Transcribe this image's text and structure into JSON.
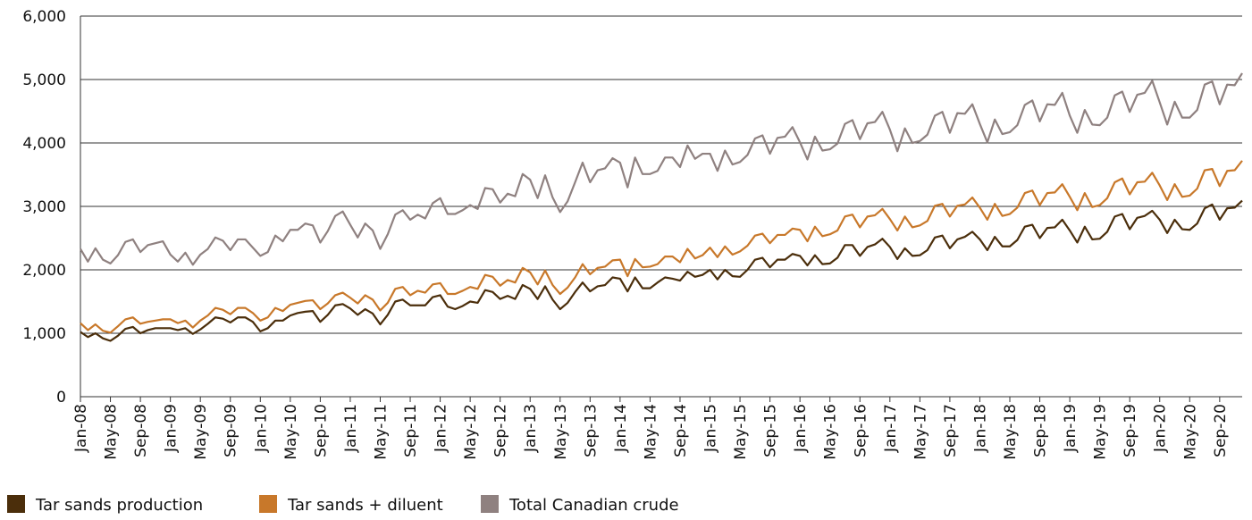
{
  "chart_data": {
    "type": "line",
    "categories": [
      "Jan-08",
      null,
      null,
      null,
      "May-08",
      null,
      null,
      null,
      "Sep-08",
      null,
      null,
      null,
      "Jan-09",
      null,
      null,
      null,
      "May-09",
      null,
      null,
      null,
      "Sep-09",
      null,
      null,
      null,
      "Jan-10",
      null,
      null,
      null,
      "May-10",
      null,
      null,
      null,
      "Sep-10",
      null,
      null,
      null,
      "Jan-11",
      null,
      null,
      null,
      "May-11",
      null,
      null,
      null,
      "Sep-11",
      null,
      null,
      null,
      "Jan-12",
      null,
      null,
      null,
      "May-12",
      null,
      null,
      null,
      "Sep-12",
      null,
      null,
      null,
      "Jan-13",
      null,
      null,
      null,
      "May-13",
      null,
      null,
      null,
      "Sep-13",
      null,
      null,
      null,
      "Jan-14",
      null,
      null,
      null,
      "May-14",
      null,
      null,
      null,
      "Sep-14",
      null,
      null,
      null,
      "Jan-15",
      null,
      null,
      null,
      "May-15",
      null,
      null,
      null,
      "Sep-15",
      null,
      null,
      null,
      "Jan-16",
      null,
      null,
      null,
      "May-16",
      null,
      null,
      null,
      "Sep-16",
      null,
      null,
      null,
      "Jan-17",
      null,
      null,
      null,
      "May-17",
      null,
      null,
      null,
      "Sep-17",
      null,
      null,
      null,
      "Jan-18",
      null,
      null,
      null,
      "May-18",
      null,
      null,
      null,
      "Sep-18",
      null,
      null,
      null,
      "Jan-19",
      null,
      null,
      null,
      "May-19",
      null,
      null,
      null,
      "Sep-19",
      null,
      null,
      null,
      "Jan-20",
      null,
      null,
      null,
      "May-20",
      null,
      null,
      null,
      "Sep-20",
      null,
      null,
      null
    ],
    "series": [
      {
        "name": "Tar sands production",
        "color": "#4b2e0b",
        "values": [
          1020,
          940,
          1000,
          920,
          880,
          960,
          1070,
          1100,
          1000,
          1050,
          1080,
          1080,
          1080,
          1050,
          1080,
          990,
          1060,
          1150,
          1250,
          1230,
          1170,
          1250,
          1250,
          1180,
          1030,
          1080,
          1200,
          1200,
          1280,
          1320,
          1340,
          1350,
          1180,
          1290,
          1440,
          1460,
          1390,
          1290,
          1380,
          1310,
          1140,
          1290,
          1500,
          1530,
          1440,
          1440,
          1440,
          1570,
          1600,
          1420,
          1380,
          1430,
          1500,
          1480,
          1680,
          1650,
          1540,
          1590,
          1540,
          1760,
          1700,
          1540,
          1740,
          1530,
          1380,
          1480,
          1650,
          1800,
          1660,
          1740,
          1760,
          1880,
          1860,
          1660,
          1880,
          1710,
          1710,
          1800,
          1880,
          1860,
          1830,
          1970,
          1890,
          1920,
          2000,
          1850,
          2000,
          1900,
          1890,
          2000,
          2160,
          2190,
          2040,
          2160,
          2160,
          2250,
          2220,
          2070,
          2230,
          2090,
          2100,
          2190,
          2390,
          2390,
          2220,
          2360,
          2400,
          2490,
          2360,
          2170,
          2340,
          2220,
          2230,
          2310,
          2510,
          2540,
          2340,
          2480,
          2520,
          2600,
          2480,
          2310,
          2520,
          2370,
          2370,
          2470,
          2680,
          2710,
          2500,
          2660,
          2670,
          2790,
          2620,
          2430,
          2680,
          2480,
          2490,
          2600,
          2840,
          2880,
          2640,
          2820,
          2850,
          2930,
          2790,
          2580,
          2790,
          2640,
          2630,
          2730,
          2970,
          3030,
          2790,
          2970,
          2980,
          3090
        ]
      },
      {
        "name": "Tar sands + diluent",
        "color": "#c8782a",
        "values": [
          1160,
          1050,
          1140,
          1040,
          1010,
          1110,
          1220,
          1250,
          1150,
          1180,
          1200,
          1220,
          1220,
          1160,
          1200,
          1090,
          1200,
          1280,
          1400,
          1370,
          1300,
          1400,
          1400,
          1320,
          1200,
          1250,
          1400,
          1350,
          1450,
          1480,
          1510,
          1520,
          1380,
          1470,
          1600,
          1640,
          1560,
          1470,
          1600,
          1530,
          1360,
          1480,
          1700,
          1730,
          1600,
          1670,
          1640,
          1770,
          1790,
          1620,
          1620,
          1670,
          1730,
          1700,
          1920,
          1890,
          1750,
          1840,
          1800,
          2030,
          1960,
          1770,
          1990,
          1760,
          1620,
          1720,
          1880,
          2090,
          1930,
          2030,
          2050,
          2150,
          2160,
          1900,
          2170,
          2040,
          2050,
          2090,
          2210,
          2210,
          2120,
          2330,
          2180,
          2230,
          2350,
          2200,
          2370,
          2240,
          2290,
          2380,
          2540,
          2570,
          2420,
          2550,
          2550,
          2650,
          2630,
          2450,
          2680,
          2530,
          2560,
          2620,
          2840,
          2870,
          2670,
          2840,
          2860,
          2960,
          2800,
          2620,
          2840,
          2670,
          2700,
          2770,
          3010,
          3040,
          2840,
          3010,
          3030,
          3140,
          2980,
          2790,
          3040,
          2850,
          2880,
          2980,
          3210,
          3250,
          3020,
          3210,
          3220,
          3350,
          3150,
          2940,
          3210,
          2990,
          3020,
          3130,
          3380,
          3440,
          3190,
          3380,
          3390,
          3530,
          3330,
          3100,
          3350,
          3150,
          3170,
          3280,
          3570,
          3590,
          3320,
          3560,
          3570,
          3720
        ]
      },
      {
        "name": "Total Canadian crude",
        "color": "#8f8180",
        "values": [
          2330,
          2130,
          2340,
          2160,
          2100,
          2230,
          2440,
          2480,
          2280,
          2390,
          2420,
          2450,
          2240,
          2130,
          2270,
          2080,
          2240,
          2330,
          2510,
          2460,
          2310,
          2480,
          2480,
          2350,
          2220,
          2280,
          2540,
          2450,
          2630,
          2630,
          2730,
          2700,
          2430,
          2610,
          2850,
          2920,
          2710,
          2510,
          2730,
          2620,
          2330,
          2560,
          2870,
          2940,
          2790,
          2870,
          2810,
          3050,
          3130,
          2880,
          2880,
          2940,
          3020,
          2960,
          3290,
          3270,
          3060,
          3200,
          3160,
          3510,
          3420,
          3130,
          3490,
          3140,
          2910,
          3080,
          3380,
          3690,
          3380,
          3570,
          3600,
          3760,
          3690,
          3300,
          3770,
          3510,
          3510,
          3560,
          3770,
          3770,
          3620,
          3960,
          3750,
          3830,
          3830,
          3560,
          3880,
          3660,
          3700,
          3810,
          4070,
          4120,
          3830,
          4080,
          4100,
          4250,
          4010,
          3740,
          4100,
          3880,
          3900,
          3990,
          4300,
          4360,
          4060,
          4310,
          4330,
          4490,
          4210,
          3870,
          4230,
          4000,
          4030,
          4130,
          4430,
          4490,
          4160,
          4470,
          4460,
          4610,
          4300,
          4010,
          4370,
          4140,
          4170,
          4280,
          4600,
          4670,
          4340,
          4610,
          4600,
          4790,
          4430,
          4160,
          4520,
          4290,
          4280,
          4400,
          4750,
          4810,
          4490,
          4760,
          4790,
          4980,
          4640,
          4290,
          4650,
          4400,
          4400,
          4520,
          4920,
          4970,
          4610,
          4920,
          4910,
          5100
        ]
      }
    ],
    "ylim": [
      0,
      6000
    ],
    "yticks": [
      0,
      {
        "value": 1000,
        "label": "1,000"
      },
      {
        "value": 2000,
        "label": "2,000"
      },
      {
        "value": 3000,
        "label": "3,000"
      },
      {
        "value": 4000,
        "label": "4,000"
      },
      {
        "value": 5000,
        "label": "5,000"
      },
      {
        "value": 6000,
        "label": "6,000"
      }
    ],
    "grid": true
  }
}
